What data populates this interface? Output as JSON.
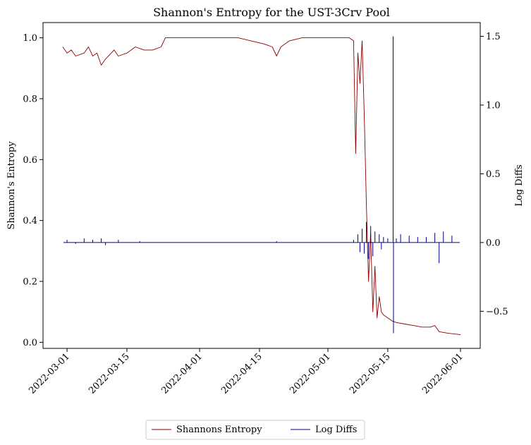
{
  "chart_data": {
    "type": "line",
    "title": "Shannon's Entropy for the UST-3Crv Pool",
    "ylabel_left": "Shannon's Entropy",
    "ylabel_right": "Log Diffs",
    "x_range": [
      "2022-02-28",
      "2022-06-01"
    ],
    "ylim_left": [
      -0.02,
      1.05
    ],
    "ylim_right": [
      -0.77,
      1.6
    ],
    "x_ticks": [
      "2022-03-01",
      "2022-03-15",
      "2022-04-01",
      "2022-04-15",
      "2022-05-01",
      "2022-05-15",
      "2022-06-01"
    ],
    "y_ticks_left": [
      "0.0",
      "0.2",
      "0.4",
      "0.6",
      "0.8",
      "1.0"
    ],
    "y_ticks_right": [
      "−0.5",
      "0.0",
      "0.5",
      "1.0",
      "1.5"
    ],
    "legend": {
      "position": "bottom-center",
      "entries": [
        "Shannons Entropy",
        "Log Diffs"
      ]
    },
    "series": [
      {
        "name": "Shannons Entropy",
        "axis": "left",
        "color": "#8b0000",
        "points": [
          [
            "2022-02-28",
            0.97
          ],
          [
            "2022-03-01",
            0.95
          ],
          [
            "2022-03-02",
            0.96
          ],
          [
            "2022-03-03",
            0.94
          ],
          [
            "2022-03-05",
            0.95
          ],
          [
            "2022-03-06",
            0.97
          ],
          [
            "2022-03-07",
            0.94
          ],
          [
            "2022-03-08",
            0.95
          ],
          [
            "2022-03-09",
            0.91
          ],
          [
            "2022-03-10",
            0.93
          ],
          [
            "2022-03-12",
            0.96
          ],
          [
            "2022-03-13",
            0.94
          ],
          [
            "2022-03-15",
            0.95
          ],
          [
            "2022-03-17",
            0.97
          ],
          [
            "2022-03-19",
            0.96
          ],
          [
            "2022-03-21",
            0.96
          ],
          [
            "2022-03-23",
            0.97
          ],
          [
            "2022-03-24",
            1.0
          ],
          [
            "2022-04-01",
            1.0
          ],
          [
            "2022-04-10",
            1.0
          ],
          [
            "2022-04-13",
            0.99
          ],
          [
            "2022-04-16",
            0.98
          ],
          [
            "2022-04-18",
            0.97
          ],
          [
            "2022-04-19",
            0.94
          ],
          [
            "2022-04-20",
            0.97
          ],
          [
            "2022-04-22",
            0.99
          ],
          [
            "2022-04-25",
            1.0
          ],
          [
            "2022-05-06",
            1.0
          ],
          [
            "2022-05-07",
            0.99
          ],
          [
            "2022-05-07 12:00",
            0.62
          ],
          [
            "2022-05-08",
            0.95
          ],
          [
            "2022-05-08 12:00",
            0.85
          ],
          [
            "2022-05-09",
            0.99
          ],
          [
            "2022-05-09 12:00",
            0.75
          ],
          [
            "2022-05-10",
            0.45
          ],
          [
            "2022-05-10 12:00",
            0.2
          ],
          [
            "2022-05-11",
            0.36
          ],
          [
            "2022-05-11 12:00",
            0.1
          ],
          [
            "2022-05-12",
            0.25
          ],
          [
            "2022-05-12 12:00",
            0.08
          ],
          [
            "2022-05-13",
            0.15
          ],
          [
            "2022-05-13 12:00",
            0.1
          ],
          [
            "2022-05-14",
            0.09
          ],
          [
            "2022-05-15",
            0.08
          ],
          [
            "2022-05-16",
            0.07
          ],
          [
            "2022-05-17",
            0.065
          ],
          [
            "2022-05-19",
            0.06
          ],
          [
            "2022-05-21",
            0.055
          ],
          [
            "2022-05-23",
            0.05
          ],
          [
            "2022-05-25",
            0.05
          ],
          [
            "2022-05-26",
            0.055
          ],
          [
            "2022-05-27",
            0.035
          ],
          [
            "2022-05-29",
            0.03
          ],
          [
            "2022-06-01",
            0.025
          ]
        ]
      },
      {
        "name": "Log Diffs",
        "axis": "right",
        "color": "#00008b",
        "baseline": 0.0,
        "spikes": [
          [
            "2022-03-01",
            0.02
          ],
          [
            "2022-03-03",
            -0.01
          ],
          [
            "2022-03-05",
            0.03
          ],
          [
            "2022-03-07",
            0.02
          ],
          [
            "2022-03-09",
            0.03
          ],
          [
            "2022-03-10",
            -0.02
          ],
          [
            "2022-03-13",
            0.02
          ],
          [
            "2022-03-18",
            0.01
          ],
          [
            "2022-04-19",
            0.01
          ],
          [
            "2022-05-07",
            0.02
          ],
          [
            "2022-05-08",
            0.06
          ],
          [
            "2022-05-08 12:00",
            -0.07
          ],
          [
            "2022-05-09",
            0.1
          ],
          [
            "2022-05-09 12:00",
            -0.08
          ],
          [
            "2022-05-10",
            0.15
          ],
          [
            "2022-05-10 12:00",
            -0.12
          ],
          [
            "2022-05-11",
            0.12
          ],
          [
            "2022-05-11 12:00",
            -0.1
          ],
          [
            "2022-05-12",
            0.08
          ],
          [
            "2022-05-13",
            0.06
          ],
          [
            "2022-05-13 12:00",
            -0.05
          ],
          [
            "2022-05-14",
            0.04
          ],
          [
            "2022-05-15",
            0.03
          ],
          [
            "2022-05-16 06:00",
            1.5
          ],
          [
            "2022-05-16 08:00",
            -0.66
          ],
          [
            "2022-05-17",
            0.03
          ],
          [
            "2022-05-18",
            0.06
          ],
          [
            "2022-05-20",
            0.05
          ],
          [
            "2022-05-22",
            0.04
          ],
          [
            "2022-05-24",
            0.04
          ],
          [
            "2022-05-26",
            0.07
          ],
          [
            "2022-05-27",
            -0.15
          ],
          [
            "2022-05-28",
            0.08
          ],
          [
            "2022-05-30",
            0.05
          ]
        ]
      }
    ]
  }
}
